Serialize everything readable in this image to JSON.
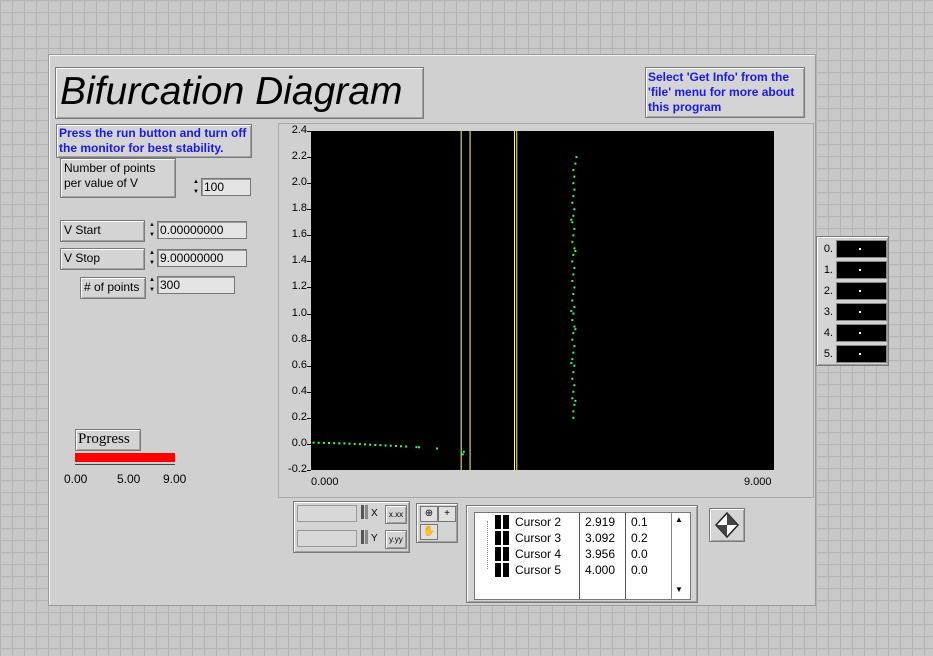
{
  "title": "Bifurcation Diagram",
  "info_note": "Select 'Get Info' from the 'file' menu for more about this program",
  "run_note": "Press the run button and turn off the monitor for best stability.",
  "controls": {
    "points_per_v": {
      "label": "Number of points per value of V",
      "value": "100"
    },
    "v_start": {
      "label": "V Start",
      "value": "0.00000000"
    },
    "v_stop": {
      "label": "V Stop",
      "value": "9.00000000"
    },
    "num_points": {
      "label": "# of points",
      "value": "300"
    }
  },
  "progress": {
    "label": "Progress",
    "value_fraction": 1.0,
    "bar_color": "#ff0000",
    "ticks": [
      "0.00",
      "5.00",
      "9.00"
    ]
  },
  "legend": {
    "items": [
      "0.",
      "1.",
      "2.",
      "3.",
      "4.",
      "5."
    ]
  },
  "graph_palette": {
    "x_format": "x.xx",
    "y_format": "y.yy"
  },
  "cursors": [
    {
      "name": "Cursor 2",
      "x": "2.919",
      "y": "0.1"
    },
    {
      "name": "Cursor 3",
      "x": "3.092",
      "y": "0.2"
    },
    {
      "name": "Cursor 4",
      "x": "3.956",
      "y": "0.0"
    },
    {
      "name": "Cursor 5",
      "x": "4.000",
      "y": "0.0"
    }
  ],
  "colors": {
    "plot_background": "#000000",
    "points": "#33ff66",
    "cursor_lines": "#ffff66",
    "note_text": "#1a1ae6"
  },
  "chart_data": {
    "type": "scatter",
    "title": "",
    "xlabel": "",
    "ylabel": "",
    "xlim": [
      0,
      9
    ],
    "ylim": [
      -0.2,
      2.4
    ],
    "x_tick_labels": [
      "0.000",
      "9.000"
    ],
    "y_tick_labels": [
      "-0.2",
      "0.0",
      "0.2",
      "0.4",
      "0.6",
      "0.8",
      "1.0",
      "1.2",
      "1.4",
      "1.6",
      "1.8",
      "2.0",
      "2.2",
      "2.4"
    ],
    "cursor_x_values": [
      2.919,
      3.092,
      3.956,
      4.0
    ],
    "series": [
      {
        "points": [
          [
            0.05,
            0.01
          ],
          [
            0.15,
            0.009
          ],
          [
            0.25,
            0.008
          ],
          [
            0.35,
            0.007
          ],
          [
            0.45,
            0.006
          ],
          [
            0.55,
            0.005
          ],
          [
            0.65,
            0.004
          ],
          [
            0.75,
            0.002
          ],
          [
            0.85,
            0.0
          ],
          [
            0.95,
            -0.002
          ],
          [
            1.05,
            -0.004
          ],
          [
            1.15,
            -0.006
          ],
          [
            1.25,
            -0.008
          ],
          [
            1.35,
            -0.01
          ],
          [
            1.45,
            -0.012
          ],
          [
            1.55,
            -0.014
          ],
          [
            1.65,
            -0.016
          ],
          [
            1.75,
            -0.018
          ],
          [
            1.85,
            -0.02
          ],
          [
            2.05,
            -0.025
          ],
          [
            2.1,
            -0.026
          ],
          [
            2.45,
            -0.035
          ],
          [
            2.95,
            -0.08
          ],
          [
            2.97,
            -0.06
          ],
          [
            5.1,
            0.2
          ],
          [
            5.1,
            0.25
          ],
          [
            5.12,
            0.3
          ],
          [
            5.08,
            0.35
          ],
          [
            5.1,
            0.4
          ],
          [
            5.12,
            0.45
          ],
          [
            5.08,
            0.5
          ],
          [
            5.1,
            0.55
          ],
          [
            5.12,
            0.6
          ],
          [
            5.08,
            0.65
          ],
          [
            5.1,
            0.7
          ],
          [
            5.12,
            0.75
          ],
          [
            5.08,
            0.8
          ],
          [
            5.1,
            0.85
          ],
          [
            5.12,
            0.9
          ],
          [
            5.08,
            0.95
          ],
          [
            5.1,
            1.0
          ],
          [
            5.12,
            1.05
          ],
          [
            5.08,
            1.1
          ],
          [
            5.1,
            1.15
          ],
          [
            5.12,
            1.2
          ],
          [
            5.08,
            1.25
          ],
          [
            5.1,
            1.3
          ],
          [
            5.12,
            1.35
          ],
          [
            5.08,
            1.4
          ],
          [
            5.1,
            1.45
          ],
          [
            5.12,
            1.5
          ],
          [
            5.08,
            1.55
          ],
          [
            5.1,
            1.6
          ],
          [
            5.12,
            1.65
          ],
          [
            5.08,
            1.7
          ],
          [
            5.1,
            1.75
          ],
          [
            5.12,
            1.8
          ],
          [
            5.08,
            1.85
          ],
          [
            5.1,
            1.9
          ],
          [
            5.12,
            1.95
          ],
          [
            5.1,
            2.0
          ],
          [
            5.12,
            2.05
          ],
          [
            5.1,
            2.1
          ],
          [
            5.14,
            2.15
          ],
          [
            5.16,
            2.2
          ],
          [
            5.06,
            1.02
          ],
          [
            5.06,
            0.62
          ],
          [
            5.14,
            1.48
          ],
          [
            5.14,
            0.88
          ],
          [
            5.06,
            1.72
          ],
          [
            5.14,
            0.33
          ]
        ]
      }
    ]
  }
}
